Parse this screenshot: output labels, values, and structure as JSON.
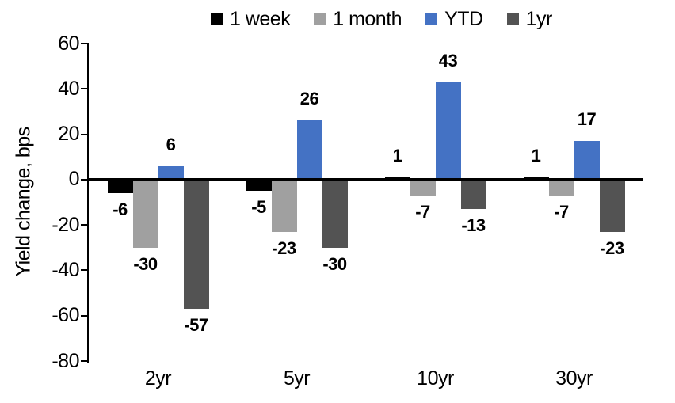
{
  "chart_data": {
    "type": "bar",
    "title": "",
    "ylabel": "Yield change, bps",
    "xlabel": "",
    "categories": [
      "2yr",
      "5yr",
      "10yr",
      "30yr"
    ],
    "series": [
      {
        "name": "1 week",
        "color": "#000000",
        "values": [
          -6,
          -5,
          1,
          1
        ]
      },
      {
        "name": "1 month",
        "color": "#A0A0A0",
        "values": [
          -30,
          -23,
          -7,
          -7
        ]
      },
      {
        "name": "YTD",
        "color": "#4472C4",
        "values": [
          6,
          26,
          43,
          17
        ]
      },
      {
        "name": "1yr",
        "color": "#535353",
        "values": [
          -57,
          -30,
          -13,
          -23
        ]
      }
    ],
    "ylim": [
      -80,
      60
    ],
    "ytick_step": 20,
    "yticks": [
      60,
      40,
      20,
      0,
      -20,
      -40,
      -60,
      -80
    ],
    "legend_position": "top",
    "grid": false,
    "data_labels": true,
    "axis_color": "#000000",
    "background": "#FFFFFF"
  }
}
